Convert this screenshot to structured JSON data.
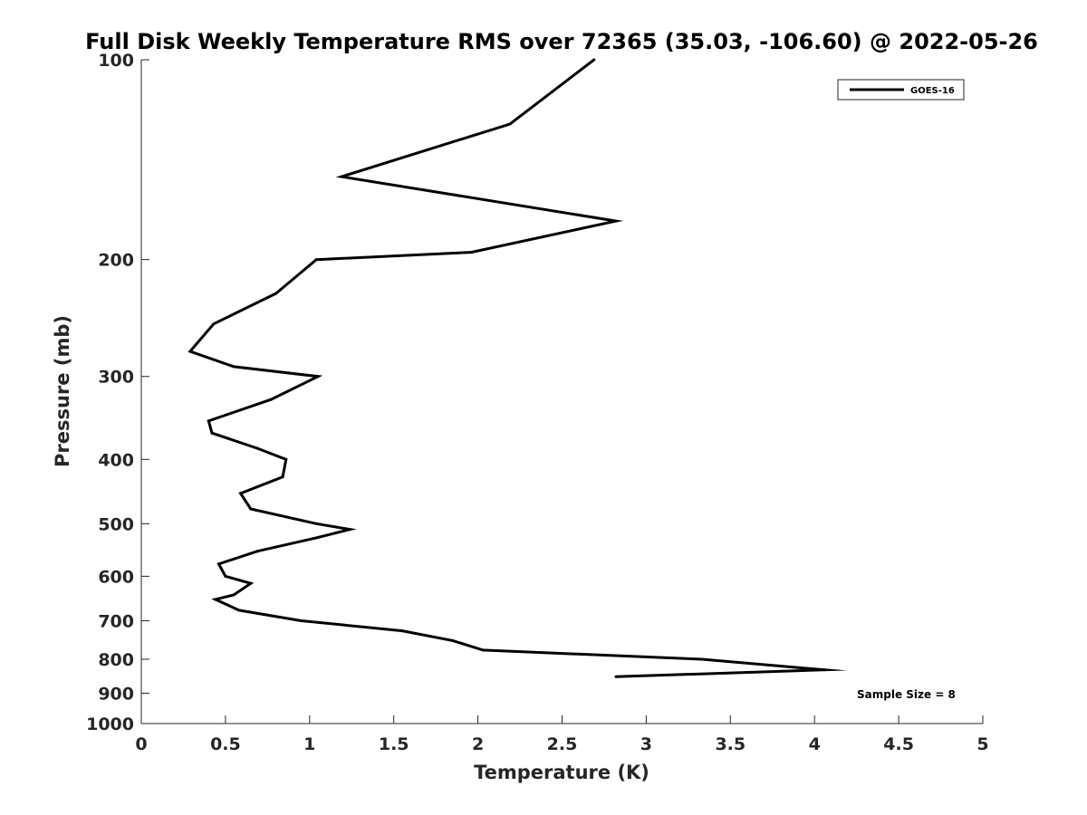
{
  "chart_data": {
    "type": "line",
    "title": "Full Disk Weekly Temperature RMS over 72365 (35.03, -106.60) @ 2022-05-26",
    "xlabel": "Temperature (K)",
    "ylabel": "Pressure (mb)",
    "xlim": [
      0,
      5
    ],
    "ylim": [
      100,
      1000
    ],
    "y_scale": "log",
    "y_reversed": true,
    "x_ticks": [
      "0",
      "0.5",
      "1",
      "1.5",
      "2",
      "2.5",
      "3",
      "3.5",
      "4",
      "4.5",
      "5"
    ],
    "y_ticks": [
      "100",
      "200",
      "300",
      "400",
      "500",
      "600",
      "700",
      "800",
      "900",
      "1000"
    ],
    "grid": false,
    "legend_position": "top-right",
    "annotation": "Sample Size = 8",
    "series": [
      {
        "name": "GOES-16",
        "color": "#000000",
        "points": [
          {
            "p": 100,
            "t": 2.69
          },
          {
            "p": 125,
            "t": 2.19
          },
          {
            "p": 150,
            "t": 1.19
          },
          {
            "p": 175,
            "t": 2.82
          },
          {
            "p": 195,
            "t": 1.96
          },
          {
            "p": 200,
            "t": 1.04
          },
          {
            "p": 225,
            "t": 0.8
          },
          {
            "p": 250,
            "t": 0.43
          },
          {
            "p": 275,
            "t": 0.29
          },
          {
            "p": 290,
            "t": 0.55
          },
          {
            "p": 300,
            "t": 1.05
          },
          {
            "p": 325,
            "t": 0.77
          },
          {
            "p": 350,
            "t": 0.4
          },
          {
            "p": 365,
            "t": 0.42
          },
          {
            "p": 385,
            "t": 0.69
          },
          {
            "p": 400,
            "t": 0.86
          },
          {
            "p": 425,
            "t": 0.84
          },
          {
            "p": 450,
            "t": 0.59
          },
          {
            "p": 475,
            "t": 0.65
          },
          {
            "p": 500,
            "t": 1.04
          },
          {
            "p": 510,
            "t": 1.24
          },
          {
            "p": 525,
            "t": 1.04
          },
          {
            "p": 550,
            "t": 0.69
          },
          {
            "p": 575,
            "t": 0.46
          },
          {
            "p": 600,
            "t": 0.5
          },
          {
            "p": 615,
            "t": 0.65
          },
          {
            "p": 640,
            "t": 0.55
          },
          {
            "p": 650,
            "t": 0.44
          },
          {
            "p": 675,
            "t": 0.58
          },
          {
            "p": 700,
            "t": 0.95
          },
          {
            "p": 725,
            "t": 1.55
          },
          {
            "p": 750,
            "t": 1.85
          },
          {
            "p": 775,
            "t": 2.03
          },
          {
            "p": 800,
            "t": 3.33
          },
          {
            "p": 830,
            "t": 4.06
          },
          {
            "p": 850,
            "t": 2.82
          }
        ]
      }
    ]
  }
}
